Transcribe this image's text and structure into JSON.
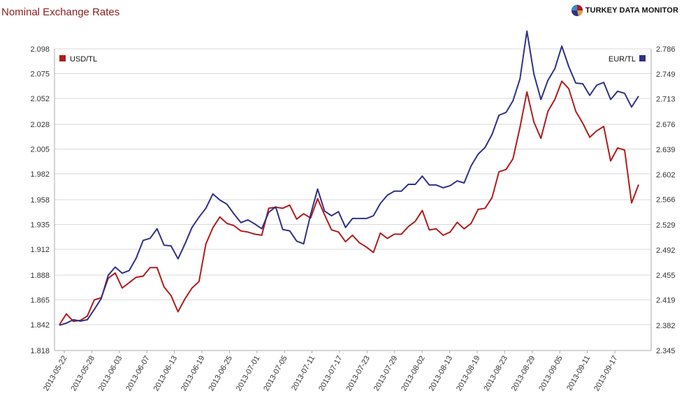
{
  "header": {
    "title": "Nominal Exchange Rates",
    "brand": "TURKEY DATA MONITOR"
  },
  "colors": {
    "usd": "#b01c1c",
    "eur": "#2f3186",
    "grid": "#d9d9d9",
    "axis": "#aaaaaa"
  },
  "chart_data": {
    "type": "line",
    "title": "Nominal Exchange Rates",
    "x_tick_labels": [
      "2013-05-22",
      "2013-05-28",
      "2013-06-03",
      "2013-06-07",
      "2013-06-13",
      "2013-06-19",
      "2013-06-25",
      "2013-07-01",
      "2013-07-05",
      "2013-07-11",
      "2013-07-17",
      "2013-07-23",
      "2013-07-29",
      "2013-08-02",
      "2013-08-13",
      "2013-08-19",
      "2013-08-23",
      "2013-08-29",
      "2013-09-05",
      "2013-09-11",
      "2013-09-17"
    ],
    "y_left": {
      "ticks": [
        "1.818",
        "1.842",
        "1.865",
        "1.888",
        "1.912",
        "1.935",
        "1.958",
        "1.982",
        "2.005",
        "2.028",
        "2.052",
        "2.075",
        "2.098"
      ],
      "range": [
        1.818,
        2.098
      ]
    },
    "y_right": {
      "ticks": [
        "2.345",
        "2.382",
        "2.419",
        "2.455",
        "2.492",
        "2.529",
        "2.566",
        "2.602",
        "2.639",
        "2.676",
        "2.713",
        "2.749",
        "2.786"
      ],
      "range": [
        2.345,
        2.786
      ]
    },
    "legend": {
      "usd": "USD/TL",
      "eur": "EUR/TL"
    },
    "series": [
      {
        "name": "USD/TL",
        "axis": "left",
        "values": [
          1.842,
          1.852,
          1.845,
          1.846,
          1.85,
          1.865,
          1.867,
          1.885,
          1.89,
          1.876,
          1.881,
          1.886,
          1.887,
          1.895,
          1.895,
          1.877,
          1.869,
          1.854,
          1.866,
          1.876,
          1.882,
          1.917,
          1.932,
          1.942,
          1.936,
          1.934,
          1.929,
          1.928,
          1.926,
          1.925,
          1.95,
          1.951,
          1.95,
          1.953,
          1.94,
          1.945,
          1.941,
          1.959,
          1.944,
          1.93,
          1.928,
          1.919,
          1.925,
          1.918,
          1.914,
          1.909,
          1.927,
          1.922,
          1.926,
          1.926,
          1.933,
          1.938,
          1.948,
          1.93,
          1.931,
          1.925,
          1.928,
          1.937,
          1.931,
          1.936,
          1.949,
          1.95,
          1.96,
          1.984,
          1.986,
          1.996,
          2.025,
          2.058,
          2.03,
          2.015,
          2.04,
          2.051,
          2.068,
          2.061,
          2.04,
          2.029,
          2.016,
          2.022,
          2.026,
          1.994,
          2.006,
          2.004,
          1.955,
          1.972
        ]
      },
      {
        "name": "EUR/TL",
        "axis": "right",
        "values": [
          2.382,
          2.385,
          2.39,
          2.388,
          2.39,
          2.405,
          2.421,
          2.455,
          2.467,
          2.458,
          2.462,
          2.48,
          2.506,
          2.509,
          2.523,
          2.499,
          2.498,
          2.479,
          2.501,
          2.525,
          2.54,
          2.553,
          2.574,
          2.565,
          2.559,
          2.545,
          2.532,
          2.536,
          2.53,
          2.523,
          2.547,
          2.555,
          2.522,
          2.52,
          2.505,
          2.501,
          2.544,
          2.581,
          2.549,
          2.542,
          2.548,
          2.525,
          2.538,
          2.538,
          2.538,
          2.542,
          2.56,
          2.572,
          2.578,
          2.578,
          2.588,
          2.588,
          2.6,
          2.587,
          2.587,
          2.583,
          2.586,
          2.593,
          2.59,
          2.615,
          2.632,
          2.642,
          2.661,
          2.689,
          2.693,
          2.71,
          2.742,
          2.812,
          2.749,
          2.712,
          2.74,
          2.757,
          2.79,
          2.76,
          2.736,
          2.735,
          2.718,
          2.733,
          2.737,
          2.712,
          2.724,
          2.721,
          2.701,
          2.717
        ]
      }
    ],
    "grid": true
  }
}
